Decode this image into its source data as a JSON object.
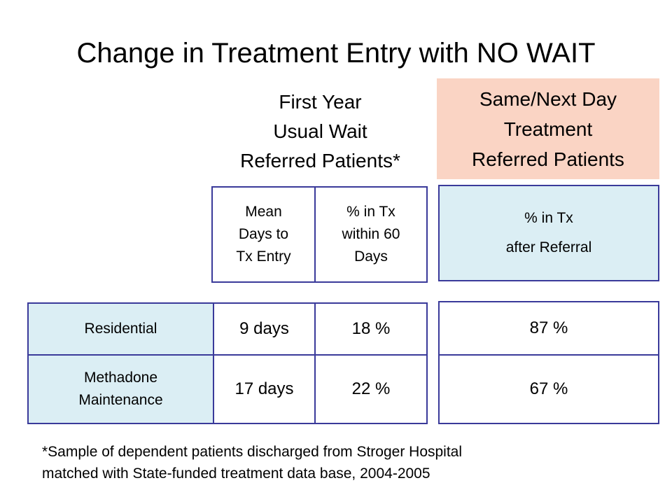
{
  "title": "Change in Treatment Entry with NO WAIT",
  "left_header": [
    "First Year",
    "Usual Wait",
    "Referred Patients*"
  ],
  "right_header": [
    "Same/Next Day",
    "Treatment",
    "Referred Patients"
  ],
  "colors": {
    "border": "#3a3a9a",
    "label_fill": "#dbeef4",
    "highlight_fill": "#fad4c4"
  },
  "table": {
    "column_headers": {
      "mean_days": [
        "Mean",
        "Days to",
        "Tx Entry"
      ],
      "pct_in_tx_60": [
        "% in Tx",
        "within 60",
        "Days"
      ],
      "pct_after_referral": [
        "% in Tx",
        "after Referral"
      ]
    },
    "rows": [
      {
        "label": [
          "Residential"
        ],
        "mean_days": "9 days",
        "pct_in_tx_60": "18 %",
        "pct_after_referral": "87 %"
      },
      {
        "label": [
          "Methadone",
          "Maintenance"
        ],
        "mean_days": "17 days",
        "pct_in_tx_60": "22 %",
        "pct_after_referral": "67 %"
      }
    ]
  },
  "footnote": [
    "*Sample of dependent patients discharged from Stroger Hospital",
    "matched with State-funded treatment data base, 2004-2005"
  ]
}
